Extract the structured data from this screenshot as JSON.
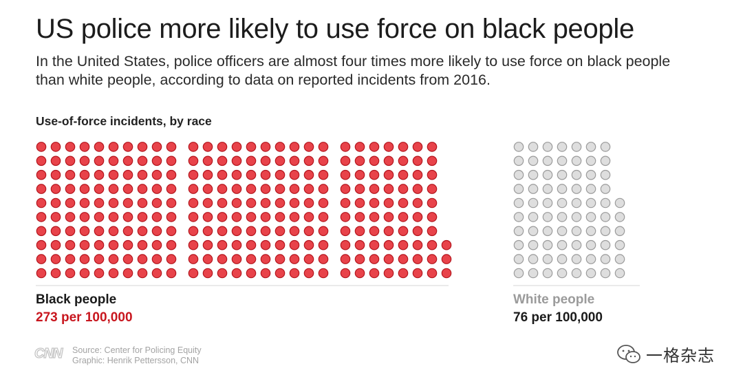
{
  "title": "US police more likely to use force on black people",
  "subtitle": "In the United States, police officers are almost four times more likely to use force on black people than white people, according to data on reported incidents from 2016.",
  "section_label": "Use-of-force incidents, by race",
  "groups": {
    "black": {
      "name": "Black people",
      "rate": "273 per 100,000"
    },
    "white": {
      "name": "White people",
      "rate": "76 per 100,000"
    }
  },
  "credits": {
    "logo": "CNN",
    "source": "Source: Center for Policing Equity",
    "graphic": "Graphic: Henrik Pettersson, CNN"
  },
  "watermark": "一格杂志",
  "colors": {
    "black_fill": "#e8434a",
    "black_stroke": "#b3141c",
    "white_fill": "#dedede",
    "white_stroke": "#9a9a9a",
    "black_rate_text": "#c8161e",
    "white_name_text": "#9b9b9b"
  },
  "chart_data": {
    "type": "waffle",
    "unit": "incidents per 100,000",
    "series": [
      {
        "name": "Black people",
        "value": 273
      },
      {
        "name": "White people",
        "value": 76
      }
    ]
  }
}
